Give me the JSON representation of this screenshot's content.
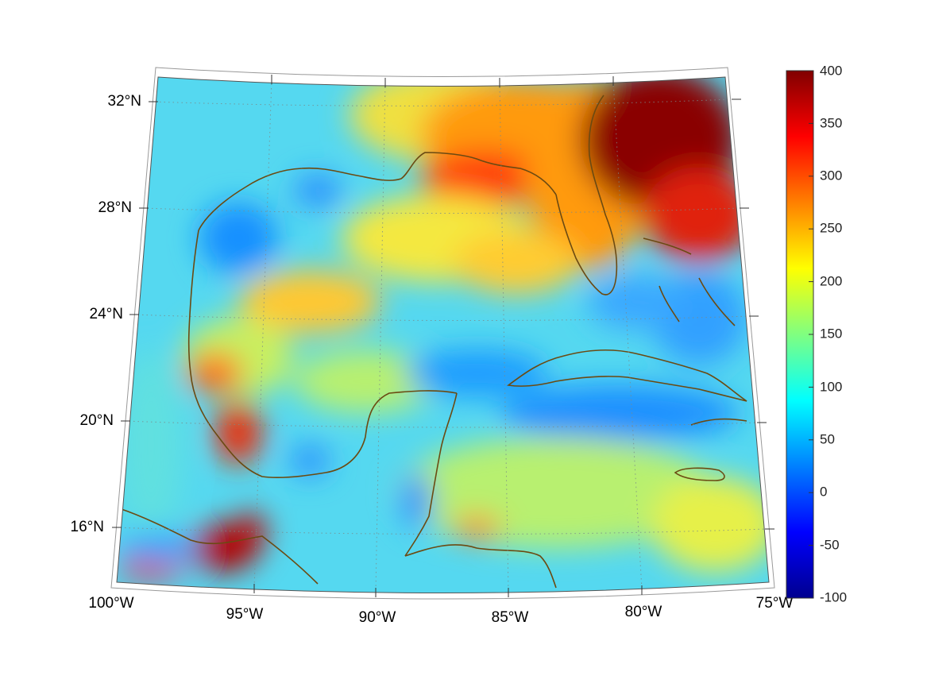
{
  "map": {
    "projection": "conic",
    "grid": true,
    "grid_style": "dotted",
    "lon_range": [
      "100°W",
      "75°W"
    ],
    "lat_range": [
      "14°N",
      "33°N"
    ],
    "lon_ticks": [
      "100°W",
      "95°W",
      "90°W",
      "85°W",
      "80°W",
      "75°W"
    ],
    "lat_ticks": [
      "16°N",
      "20°N",
      "24°N",
      "28°N",
      "32°N"
    ],
    "coastline_color": "#6b4a12",
    "colormap": "jet"
  },
  "colorbar": {
    "ticks": [
      "400",
      "350",
      "300",
      "250",
      "200",
      "150",
      "100",
      "50",
      "0",
      "-50",
      "-100"
    ],
    "min": -100,
    "max": 400,
    "colors": [
      "#00008f",
      "#0000ff",
      "#0080ff",
      "#00ffff",
      "#80ff80",
      "#ffff00",
      "#ff8000",
      "#ff0000",
      "#800000"
    ]
  }
}
